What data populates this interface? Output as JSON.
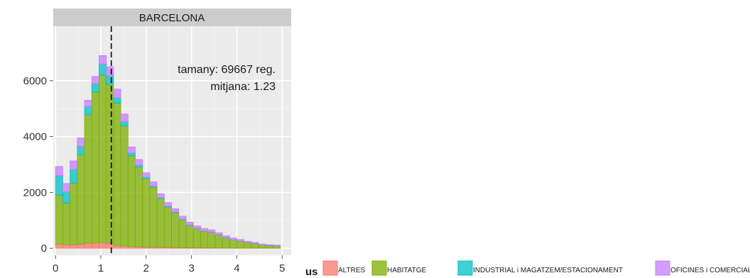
{
  "chart_data": {
    "type": "bar",
    "stacked": true,
    "facet_label": "BARCELONA",
    "x_ticks": [
      0,
      1,
      2,
      3,
      4,
      5
    ],
    "y_ticks": [
      0,
      2000,
      4000,
      6000
    ],
    "xlim": [
      -0.05,
      5.2
    ],
    "ylim": [
      -250,
      7950
    ],
    "bin_width": 0.16,
    "bin_starts": [
      0.0,
      0.16,
      0.32,
      0.48,
      0.64,
      0.8,
      0.96,
      1.12,
      1.28,
      1.44,
      1.6,
      1.76,
      1.92,
      2.08,
      2.24,
      2.4,
      2.56,
      2.72,
      2.88,
      3.04,
      3.2,
      3.36,
      3.52,
      3.68,
      3.84,
      4.0,
      4.16,
      4.32,
      4.48,
      4.64,
      4.8
    ],
    "series": [
      {
        "name": "ALTRES",
        "color": "#F8766D",
        "values": [
          150,
          120,
          130,
          150,
          180,
          190,
          200,
          180,
          100,
          80,
          60,
          50,
          45,
          40,
          35,
          30,
          25,
          22,
          20,
          18,
          15,
          12,
          10,
          10,
          8,
          8,
          6,
          5,
          5,
          5,
          5
        ]
      },
      {
        "name": "HABITATGE",
        "color": "#7CAE00",
        "values": [
          1750,
          1500,
          2200,
          3200,
          4600,
          5400,
          6000,
          5700,
          5100,
          4300,
          3250,
          2850,
          2450,
          2150,
          1750,
          1450,
          1250,
          1000,
          800,
          680,
          600,
          560,
          470,
          370,
          300,
          250,
          200,
          170,
          120,
          100,
          90
        ]
      },
      {
        "name": "INDUSTRIAL i MAGATZEM/ESTACIONAMENT",
        "color": "#00BFC4",
        "values": [
          700,
          400,
          500,
          300,
          300,
          300,
          400,
          300,
          200,
          150,
          100,
          80,
          60,
          40,
          30,
          25,
          20,
          18,
          15,
          12,
          10,
          10,
          8,
          8,
          6,
          6,
          5,
          5,
          5,
          4,
          3
        ]
      },
      {
        "name": "OFICINES i COMERCIAL",
        "color": "#C77CFF",
        "values": [
          330,
          300,
          300,
          300,
          220,
          260,
          300,
          320,
          300,
          280,
          220,
          200,
          150,
          150,
          140,
          130,
          120,
          110,
          100,
          90,
          85,
          80,
          70,
          60,
          55,
          50,
          40,
          30,
          20,
          20,
          15
        ]
      }
    ],
    "mean_line_x": 1.23,
    "annotations": [
      "tamany: 69667 reg.",
      "mitjana: 1.23"
    ],
    "legend": {
      "title": "us",
      "position": "bottom-right",
      "orientation": "horizontal"
    },
    "grid": true,
    "panel_background": "#EBEBEB",
    "strip_background": "#CCCCCC"
  }
}
